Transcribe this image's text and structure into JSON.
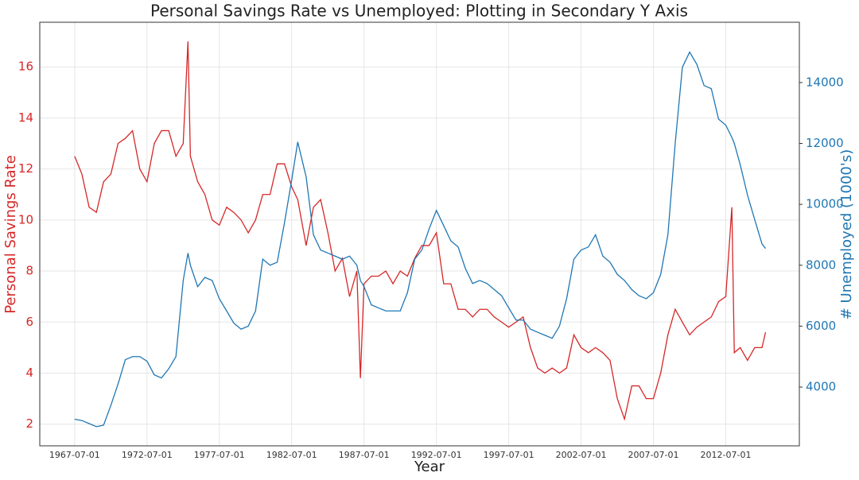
{
  "chart_data": {
    "type": "line",
    "title": "Personal Savings Rate vs Unemployed: Plotting in Secondary Y Axis",
    "xlabel": "Year",
    "ylabel": "Personal Savings Rate",
    "y2label": "# Unemployed (1000's)",
    "x": [
      "1967-07-01",
      "1968-01-01",
      "1968-07-01",
      "1969-01-01",
      "1969-07-01",
      "1970-01-01",
      "1970-07-01",
      "1971-01-01",
      "1971-07-01",
      "1972-01-01",
      "1972-07-01",
      "1973-01-01",
      "1973-07-01",
      "1974-01-01",
      "1974-07-01",
      "1975-01-01",
      "1975-05-01",
      "1975-07-01",
      "1976-01-01",
      "1976-07-01",
      "1977-01-01",
      "1977-07-01",
      "1978-01-01",
      "1978-07-01",
      "1979-01-01",
      "1979-07-01",
      "1980-01-01",
      "1980-07-01",
      "1981-01-01",
      "1981-07-01",
      "1982-01-01",
      "1982-07-01",
      "1982-12-01",
      "1983-07-01",
      "1984-01-01",
      "1984-07-01",
      "1985-01-01",
      "1985-07-01",
      "1986-01-01",
      "1986-07-01",
      "1987-01-01",
      "1987-04-01",
      "1987-07-01",
      "1988-01-01",
      "1988-07-01",
      "1989-01-01",
      "1989-07-01",
      "1990-01-01",
      "1990-07-01",
      "1991-01-01",
      "1991-07-01",
      "1992-01-01",
      "1992-07-01",
      "1993-01-01",
      "1993-07-01",
      "1994-01-01",
      "1994-07-01",
      "1995-01-01",
      "1995-07-01",
      "1996-01-01",
      "1996-07-01",
      "1997-01-01",
      "1997-07-01",
      "1998-01-01",
      "1998-07-01",
      "1999-01-01",
      "1999-07-01",
      "2000-01-01",
      "2000-07-01",
      "2001-01-01",
      "2001-07-01",
      "2002-01-01",
      "2002-07-01",
      "2003-01-01",
      "2003-07-01",
      "2004-01-01",
      "2004-07-01",
      "2005-01-01",
      "2005-07-01",
      "2006-01-01",
      "2006-07-01",
      "2007-01-01",
      "2007-07-01",
      "2008-01-01",
      "2008-07-01",
      "2009-01-01",
      "2009-07-01",
      "2010-01-01",
      "2010-07-01",
      "2011-01-01",
      "2011-07-01",
      "2012-01-01",
      "2012-07-01",
      "2012-12-01",
      "2013-02-01",
      "2013-07-01",
      "2014-01-01",
      "2014-07-01",
      "2015-01-01",
      "2015-04-01"
    ],
    "series": [
      {
        "name": "Personal Savings Rate",
        "color": "#d62728",
        "axis": "y",
        "values": [
          12.5,
          11.8,
          10.5,
          10.3,
          11.5,
          11.8,
          13.0,
          13.2,
          13.5,
          12.0,
          11.5,
          13.0,
          13.5,
          13.5,
          12.5,
          13.0,
          17.0,
          12.5,
          11.5,
          11.0,
          10.0,
          9.8,
          10.5,
          10.3,
          10.0,
          9.5,
          10.0,
          11.0,
          11.0,
          12.2,
          12.2,
          11.3,
          10.8,
          9.0,
          10.5,
          10.8,
          9.5,
          8.0,
          8.5,
          7.0,
          8.0,
          3.8,
          7.5,
          7.8,
          7.8,
          8.0,
          7.5,
          8.0,
          7.8,
          8.5,
          9.0,
          9.0,
          9.5,
          7.5,
          7.5,
          6.5,
          6.5,
          6.2,
          6.5,
          6.5,
          6.2,
          6.0,
          5.8,
          6.0,
          6.2,
          5.0,
          4.2,
          4.0,
          4.2,
          4.0,
          4.2,
          5.5,
          5.0,
          4.8,
          5.0,
          4.8,
          4.5,
          3.0,
          2.2,
          3.5,
          3.5,
          3.0,
          3.0,
          4.0,
          5.5,
          6.5,
          6.0,
          5.5,
          5.8,
          6.0,
          6.2,
          6.8,
          7.0,
          10.5,
          4.8,
          5.0,
          4.5,
          5.0,
          5.0,
          5.6
        ]
      },
      {
        "name": "# Unemployed (1000's)",
        "color": "#1f77b4",
        "axis": "y2",
        "values": [
          2944,
          2900,
          2800,
          2700,
          2750,
          3400,
          4100,
          4900,
          5000,
          5000,
          4850,
          4400,
          4300,
          4600,
          5000,
          7500,
          8400,
          8000,
          7300,
          7600,
          7500,
          6900,
          6500,
          6100,
          5900,
          6000,
          6500,
          8200,
          8000,
          8100,
          9400,
          10800,
          12050,
          10900,
          9000,
          8500,
          8400,
          8300,
          8200,
          8300,
          8000,
          7500,
          7300,
          6700,
          6600,
          6500,
          6500,
          6500,
          7100,
          8200,
          8500,
          9200,
          9800,
          9300,
          8800,
          8600,
          7900,
          7400,
          7500,
          7400,
          7200,
          7000,
          6600,
          6200,
          6200,
          5900,
          5800,
          5700,
          5600,
          6000,
          6900,
          8200,
          8500,
          8600,
          9000,
          8300,
          8100,
          7700,
          7500,
          7200,
          7000,
          6900,
          7100,
          7700,
          9000,
          12000,
          14500,
          15000,
          14600,
          13900,
          13800,
          12800,
          12600,
          12200,
          12000,
          11300,
          10300,
          9500,
          8700,
          8550
        ]
      }
    ],
    "xlim": [
      "1965-02-01",
      "2017-08-01"
    ],
    "xticks": [
      "1967-07-01",
      "1972-07-01",
      "1977-07-01",
      "1982-07-01",
      "1987-07-01",
      "1992-07-01",
      "1997-07-01",
      "2002-07-01",
      "2007-07-01",
      "2012-07-01"
    ],
    "ylim": [
      1.15,
      17.75
    ],
    "yticks": [
      2,
      4,
      6,
      8,
      10,
      12,
      14,
      16
    ],
    "y2lim": [
      2070,
      15980
    ],
    "y2ticks": [
      4000,
      6000,
      8000,
      10000,
      12000,
      14000
    ],
    "grid": true
  }
}
